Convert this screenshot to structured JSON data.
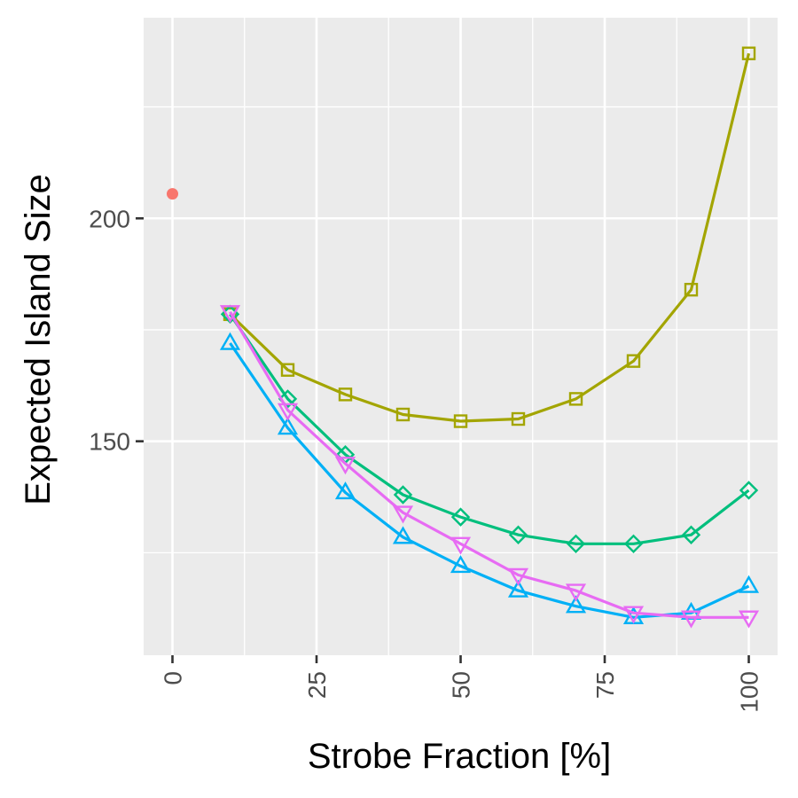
{
  "chart_data": {
    "type": "line",
    "title": "",
    "xlabel": "Strobe Fraction [%]",
    "ylabel": "Expected Island Size",
    "xlim": [
      -5,
      105
    ],
    "ylim": [
      102,
      245
    ],
    "x_ticks": [
      0,
      25,
      50,
      75,
      100
    ],
    "x_tick_labels": [
      "0",
      "25",
      "50",
      "75",
      "100"
    ],
    "y_ticks": [
      150,
      200
    ],
    "y_tick_labels": [
      "150",
      "200"
    ],
    "grid": true,
    "legend": "none",
    "series": [
      {
        "color": "#F8766D",
        "marker": "dot",
        "line": false,
        "x": [
          0
        ],
        "y": [
          205.5
        ]
      },
      {
        "color": "#A3A500",
        "marker": "square",
        "line": true,
        "x": [
          10,
          20,
          30,
          40,
          50,
          60,
          70,
          80,
          90,
          100
        ],
        "y": [
          178.5,
          166,
          160.5,
          156,
          154.5,
          155,
          159.5,
          168,
          184,
          237
        ]
      },
      {
        "color": "#00BF7D",
        "marker": "diamond",
        "line": true,
        "x": [
          10,
          20,
          30,
          40,
          50,
          60,
          70,
          80,
          90,
          100
        ],
        "y": [
          178.5,
          159.5,
          147,
          138,
          133,
          129,
          127,
          127,
          129,
          139
        ]
      },
      {
        "color": "#00B0F6",
        "marker": "triangle-up",
        "line": true,
        "x": [
          10,
          20,
          30,
          40,
          50,
          60,
          70,
          80,
          90,
          100
        ],
        "y": [
          172,
          153,
          138.5,
          128.5,
          122,
          116.5,
          113,
          110.5,
          111.5,
          117.5
        ]
      },
      {
        "color": "#E76BF3",
        "marker": "triangle-down",
        "line": true,
        "x": [
          10,
          20,
          30,
          40,
          50,
          60,
          70,
          80,
          90,
          100
        ],
        "y": [
          179,
          157,
          145,
          134,
          127,
          120,
          116.5,
          111.5,
          110.5,
          110.5
        ]
      }
    ]
  }
}
